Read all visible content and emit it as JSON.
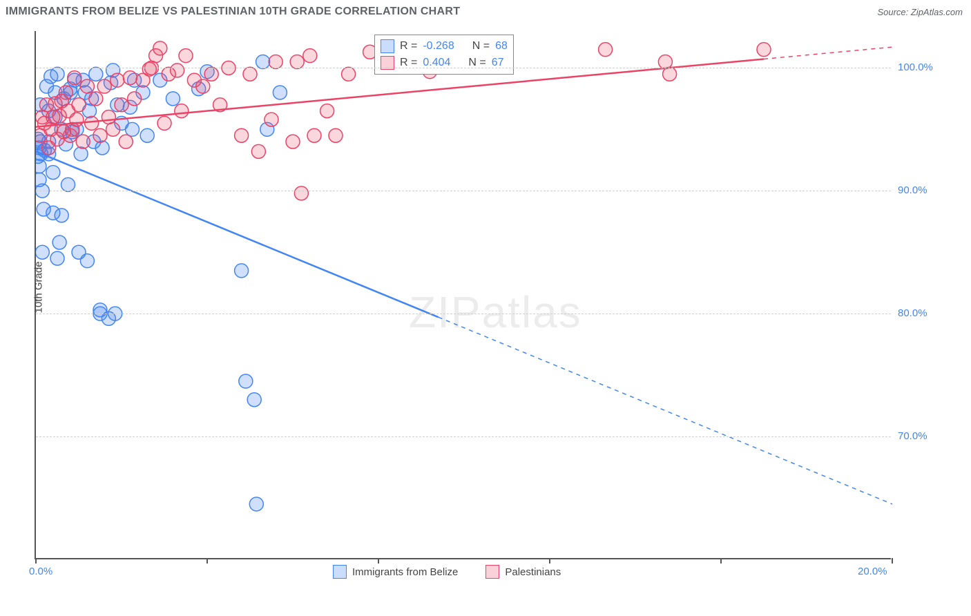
{
  "header": {
    "title": "IMMIGRANTS FROM BELIZE VS PALESTINIAN 10TH GRADE CORRELATION CHART",
    "source_prefix": "Source: ",
    "source": "ZipAtlas.com"
  },
  "watermark": {
    "part1": "ZIP",
    "part2": "atlas"
  },
  "chart": {
    "type": "scatter",
    "ylabel": "10th Grade",
    "background_color": "#ffffff",
    "grid_color": "#d0d0d0",
    "axis_color": "#555555",
    "xlim": [
      0,
      20
    ],
    "ylim": [
      60,
      103
    ],
    "xticks": [
      {
        "pos": 0.0,
        "label": "0.0%"
      },
      {
        "pos": 4.0,
        "label": ""
      },
      {
        "pos": 8.0,
        "label": ""
      },
      {
        "pos": 12.0,
        "label": ""
      },
      {
        "pos": 16.0,
        "label": ""
      },
      {
        "pos": 20.0,
        "label": "20.0%"
      }
    ],
    "yticks": [
      {
        "pos": 70.0,
        "label": "70.0%"
      },
      {
        "pos": 80.0,
        "label": "80.0%"
      },
      {
        "pos": 90.0,
        "label": "90.0%"
      },
      {
        "pos": 100.0,
        "label": "100.0%"
      }
    ],
    "series": [
      {
        "name": "Immigrants from Belize",
        "color": "#4285f4",
        "fill": "rgba(66,133,244,0.25)",
        "marker_radius": 10,
        "R": "-0.268",
        "N": "68",
        "trend": {
          "x1": 0.0,
          "y1": 93.2,
          "x2": 20.0,
          "y2": 64.5,
          "solid_until_x": 9.4
        },
        "points": [
          [
            0.05,
            94.2
          ],
          [
            0.05,
            92.8
          ],
          [
            0.08,
            93.5
          ],
          [
            0.08,
            92.0
          ],
          [
            0.08,
            90.9
          ],
          [
            0.1,
            94.0
          ],
          [
            0.1,
            97.0
          ],
          [
            0.12,
            93.0
          ],
          [
            0.15,
            90.0
          ],
          [
            0.15,
            85.0
          ],
          [
            0.18,
            88.5
          ],
          [
            0.2,
            93.3
          ],
          [
            0.25,
            98.5
          ],
          [
            0.3,
            96.5
          ],
          [
            0.3,
            94.0
          ],
          [
            0.3,
            93.0
          ],
          [
            0.35,
            99.3
          ],
          [
            0.4,
            91.5
          ],
          [
            0.4,
            88.2
          ],
          [
            0.45,
            98.0
          ],
          [
            0.45,
            96.0
          ],
          [
            0.5,
            99.5
          ],
          [
            0.5,
            84.5
          ],
          [
            0.55,
            85.8
          ],
          [
            0.6,
            95.0
          ],
          [
            0.6,
            88.0
          ],
          [
            0.65,
            97.5
          ],
          [
            0.7,
            93.8
          ],
          [
            0.75,
            90.5
          ],
          [
            0.8,
            98.3
          ],
          [
            0.81,
            98.0
          ],
          [
            0.85,
            94.8
          ],
          [
            0.9,
            99.0
          ],
          [
            0.95,
            95.0
          ],
          [
            1.0,
            85.0
          ],
          [
            1.05,
            93.0
          ],
          [
            1.1,
            99.0
          ],
          [
            1.15,
            98.0
          ],
          [
            1.2,
            84.3
          ],
          [
            1.25,
            96.5
          ],
          [
            1.3,
            97.5
          ],
          [
            1.35,
            94.0
          ],
          [
            1.4,
            99.5
          ],
          [
            1.5,
            80.0
          ],
          [
            1.5,
            80.3
          ],
          [
            1.55,
            93.5
          ],
          [
            1.7,
            79.6
          ],
          [
            1.75,
            98.8
          ],
          [
            1.8,
            99.8
          ],
          [
            1.85,
            80.0
          ],
          [
            1.9,
            97.0
          ],
          [
            2.0,
            95.5
          ],
          [
            2.2,
            96.8
          ],
          [
            2.25,
            95.0
          ],
          [
            2.3,
            99.0
          ],
          [
            2.5,
            98.0
          ],
          [
            2.6,
            94.5
          ],
          [
            2.9,
            99.0
          ],
          [
            3.2,
            97.5
          ],
          [
            3.8,
            98.3
          ],
          [
            4.0,
            99.7
          ],
          [
            4.9,
            74.5
          ],
          [
            4.8,
            83.5
          ],
          [
            5.1,
            73.0
          ],
          [
            5.15,
            64.5
          ],
          [
            5.3,
            100.5
          ],
          [
            5.4,
            95.0
          ],
          [
            5.7,
            98.0
          ]
        ]
      },
      {
        "name": "Palestinians",
        "color": "#ea4366",
        "fill": "rgba(234,67,102,0.22)",
        "marker_radius": 10,
        "R": "0.404",
        "N": "67",
        "trend": {
          "x1": 0.0,
          "y1": 95.2,
          "x2": 20.0,
          "y2": 101.7,
          "solid_until_x": 17.0
        },
        "points": [
          [
            0.1,
            94.5
          ],
          [
            0.15,
            96.0
          ],
          [
            0.2,
            95.5
          ],
          [
            0.25,
            97.0
          ],
          [
            0.3,
            93.5
          ],
          [
            0.35,
            95.0
          ],
          [
            0.4,
            96.0
          ],
          [
            0.45,
            97.1
          ],
          [
            0.5,
            94.2
          ],
          [
            0.55,
            96.1
          ],
          [
            0.6,
            97.3
          ],
          [
            0.65,
            94.8
          ],
          [
            0.7,
            98.0
          ],
          [
            0.75,
            96.5
          ],
          [
            0.8,
            94.5
          ],
          [
            0.85,
            95.0
          ],
          [
            0.9,
            99.2
          ],
          [
            0.95,
            95.8
          ],
          [
            1.0,
            97.0
          ],
          [
            1.1,
            94.0
          ],
          [
            1.2,
            98.5
          ],
          [
            1.3,
            95.5
          ],
          [
            1.4,
            97.5
          ],
          [
            1.5,
            94.5
          ],
          [
            1.6,
            98.5
          ],
          [
            1.7,
            96.0
          ],
          [
            1.8,
            95.0
          ],
          [
            1.9,
            99.0
          ],
          [
            2.0,
            97.0
          ],
          [
            2.1,
            94.0
          ],
          [
            2.2,
            99.2
          ],
          [
            2.3,
            97.5
          ],
          [
            2.5,
            99.0
          ],
          [
            2.65,
            99.9
          ],
          [
            2.7,
            100.0
          ],
          [
            2.8,
            101.0
          ],
          [
            2.9,
            101.6
          ],
          [
            3.0,
            95.5
          ],
          [
            3.1,
            99.5
          ],
          [
            3.3,
            99.8
          ],
          [
            3.4,
            96.5
          ],
          [
            3.5,
            101.0
          ],
          [
            3.7,
            99.0
          ],
          [
            3.9,
            98.5
          ],
          [
            4.1,
            99.5
          ],
          [
            4.3,
            97.0
          ],
          [
            4.5,
            100.0
          ],
          [
            4.8,
            94.5
          ],
          [
            5.0,
            99.5
          ],
          [
            5.2,
            93.2
          ],
          [
            5.5,
            95.8
          ],
          [
            5.6,
            100.5
          ],
          [
            6.0,
            94.0
          ],
          [
            6.1,
            100.5
          ],
          [
            6.2,
            89.8
          ],
          [
            6.4,
            101.0
          ],
          [
            6.5,
            94.5
          ],
          [
            6.8,
            96.5
          ],
          [
            7.0,
            94.5
          ],
          [
            7.3,
            99.5
          ],
          [
            7.8,
            101.3
          ],
          [
            9.2,
            99.7
          ],
          [
            10.2,
            100.8
          ],
          [
            13.3,
            101.5
          ],
          [
            14.7,
            100.5
          ],
          [
            14.8,
            99.5
          ],
          [
            17.0,
            101.5
          ]
        ]
      }
    ]
  },
  "legend_top": {
    "R_label": "R =",
    "N_label": "N ="
  },
  "legend_bottom": {
    "items": [
      {
        "swatch": "blue",
        "label": "Immigrants from Belize"
      },
      {
        "swatch": "pink",
        "label": "Palestinians"
      }
    ]
  }
}
